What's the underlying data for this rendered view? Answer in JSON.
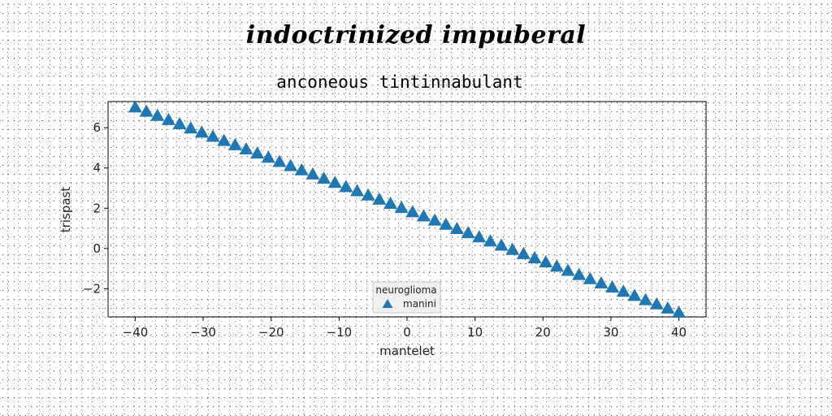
{
  "title": "indoctrinized impuberal",
  "chart_data": {
    "type": "scatter",
    "subtitle": "anconeous tintinnabulant",
    "xlabel": "mantelet",
    "ylabel": "trispast",
    "xlim": [
      -44,
      44
    ],
    "ylim": [
      -3.4,
      7.3
    ],
    "xticks": [
      -40,
      -30,
      -20,
      -10,
      0,
      10,
      20,
      30,
      40
    ],
    "yticks": [
      -2,
      0,
      2,
      4,
      6
    ],
    "grid": false,
    "legend": {
      "title": "neuroglioma",
      "placement": "lower-center"
    },
    "series": [
      {
        "name": "manini",
        "color": "#1f77b4",
        "marker": "triangle",
        "x_start": -40,
        "x_end": 40,
        "y_start": 7.0,
        "y_end": -3.2,
        "count": 50
      }
    ]
  }
}
